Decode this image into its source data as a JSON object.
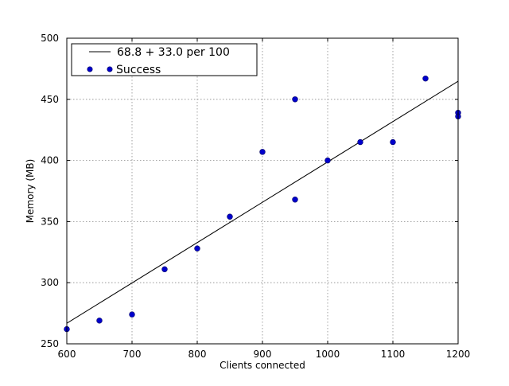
{
  "chart_data": {
    "type": "scatter",
    "xlabel": "Clients connected",
    "ylabel": "Memory (MB)",
    "xlim": [
      600,
      1200
    ],
    "ylim": [
      250,
      500
    ],
    "xticks": [
      600,
      700,
      800,
      900,
      1000,
      1100,
      1200
    ],
    "yticks": [
      250,
      300,
      350,
      400,
      450,
      500
    ],
    "xtick_labels": [
      "600",
      "700",
      "800",
      "900",
      "1000",
      "1100",
      "1200"
    ],
    "ytick_labels": [
      "250",
      "300",
      "350",
      "400",
      "450",
      "500"
    ],
    "grid": true,
    "legend_position": "top-left",
    "series": [
      {
        "name": "Success",
        "kind": "scatter",
        "color": "#0000cc",
        "x": [
          600,
          650,
          700,
          750,
          800,
          850,
          900,
          950,
          950,
          1000,
          1050,
          1100,
          1150,
          1200,
          1200
        ],
        "y": [
          262,
          269,
          274,
          311,
          328,
          354,
          407,
          450,
          368,
          400,
          415,
          415,
          467,
          439,
          436
        ]
      },
      {
        "name": "68.8 + 33.0 per 100",
        "kind": "line",
        "color": "#000000",
        "x": [
          600,
          1200
        ],
        "y": [
          266.8,
          464.8
        ]
      }
    ],
    "legend": [
      "68.8 + 33.0 per 100",
      "Success"
    ]
  }
}
